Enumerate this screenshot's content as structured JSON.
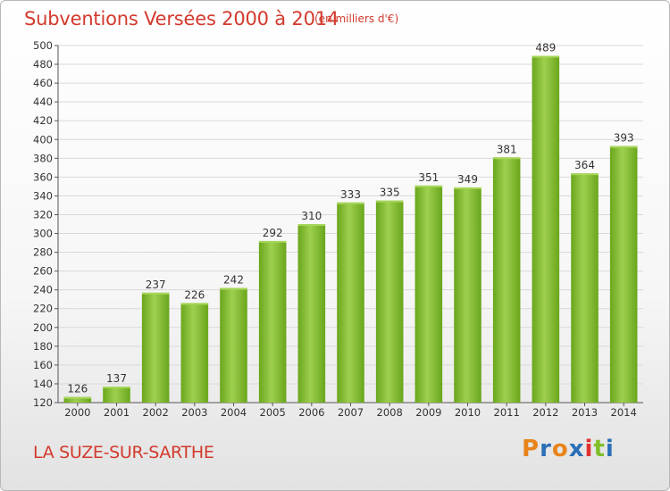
{
  "chart_data": {
    "type": "bar",
    "title": "Subventions Versées 2000 à 2014",
    "subtitle": "(en milliers d'€)",
    "categories": [
      "2000",
      "2001",
      "2002",
      "2003",
      "2004",
      "2005",
      "2006",
      "2007",
      "2008",
      "2009",
      "2010",
      "2011",
      "2012",
      "2013",
      "2014"
    ],
    "values": [
      126,
      137,
      237,
      226,
      242,
      292,
      310,
      333,
      335,
      351,
      349,
      381,
      489,
      364,
      393
    ],
    "ylim": [
      120,
      500
    ],
    "ystep": 20,
    "grid": true,
    "bar_color": "#7fbf2a",
    "bar_color_top": "#a6d65a",
    "bar_color_bottom": "#5f9a15"
  },
  "footer": {
    "commune": "LA SUZE-SUR-SARTHE",
    "logo_text": "Proxiti",
    "logo_colors": [
      "#e8841c",
      "#2a6fb8",
      "#e8841c",
      "#2a6fb8",
      "#e03030",
      "#7fbf2a",
      "#2a6fb8"
    ]
  }
}
